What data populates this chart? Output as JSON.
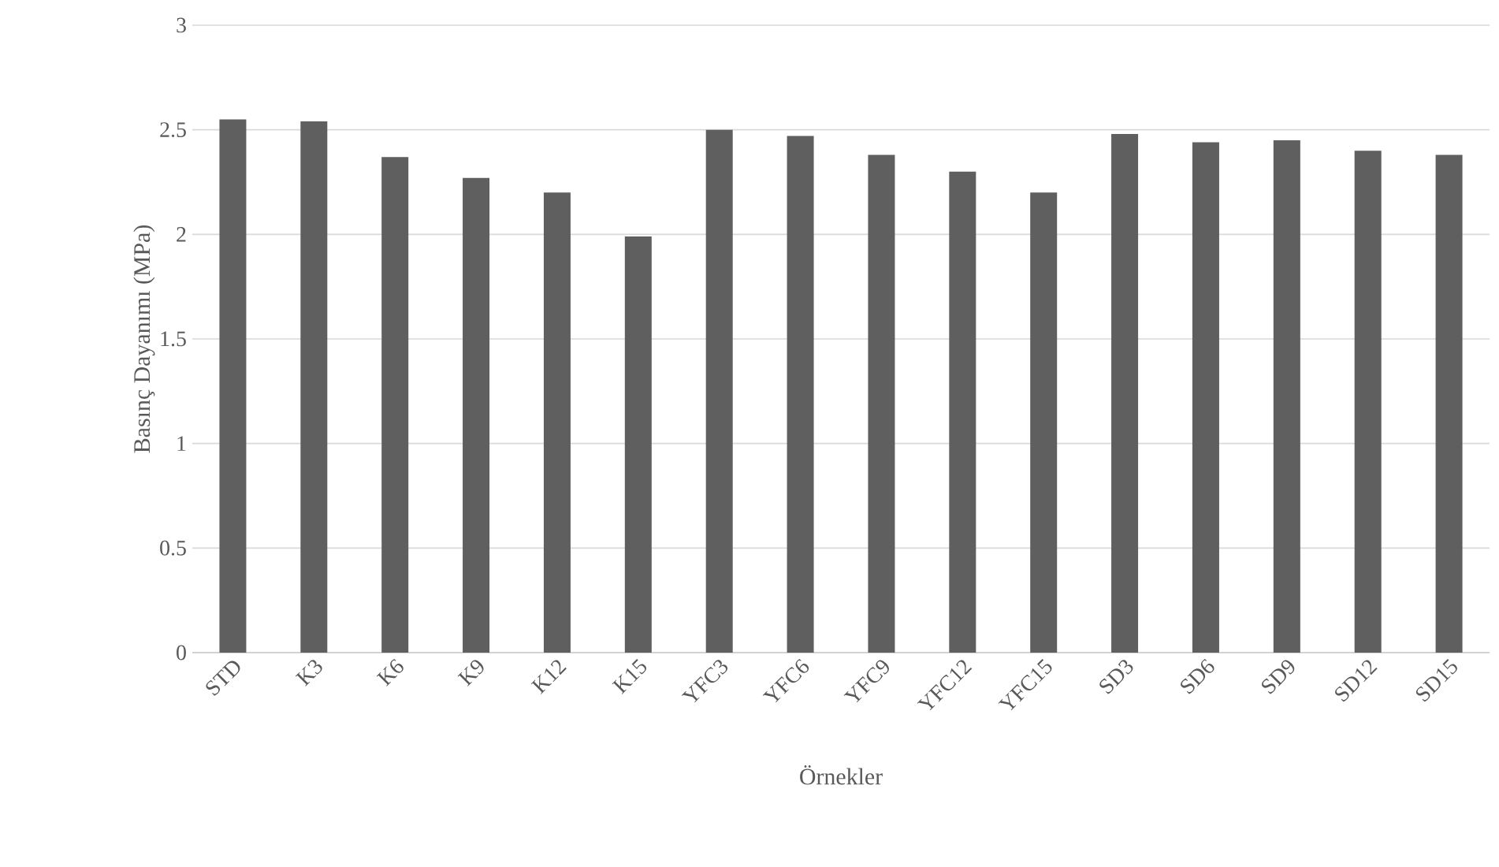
{
  "chart_data": {
    "type": "bar",
    "xlabel": "Örnekler",
    "ylabel": "Basınç Dayanımı (MPa)",
    "categories": [
      "STD",
      "K3",
      "K6",
      "K9",
      "K12",
      "K15",
      "YFC3",
      "YFC6",
      "YFC9",
      "YFC12",
      "YFC15",
      "SD3",
      "SD6",
      "SD9",
      "SD12",
      "SD15"
    ],
    "values": [
      2.55,
      2.54,
      2.37,
      2.27,
      2.2,
      1.99,
      2.5,
      2.47,
      2.38,
      2.3,
      2.2,
      2.48,
      2.44,
      2.45,
      2.4,
      2.38
    ],
    "color": "#5f5f5f",
    "ylim": [
      0,
      3
    ],
    "yticks": [
      0,
      0.5,
      1,
      1.5,
      2,
      2.5,
      3
    ],
    "grid": "y"
  }
}
